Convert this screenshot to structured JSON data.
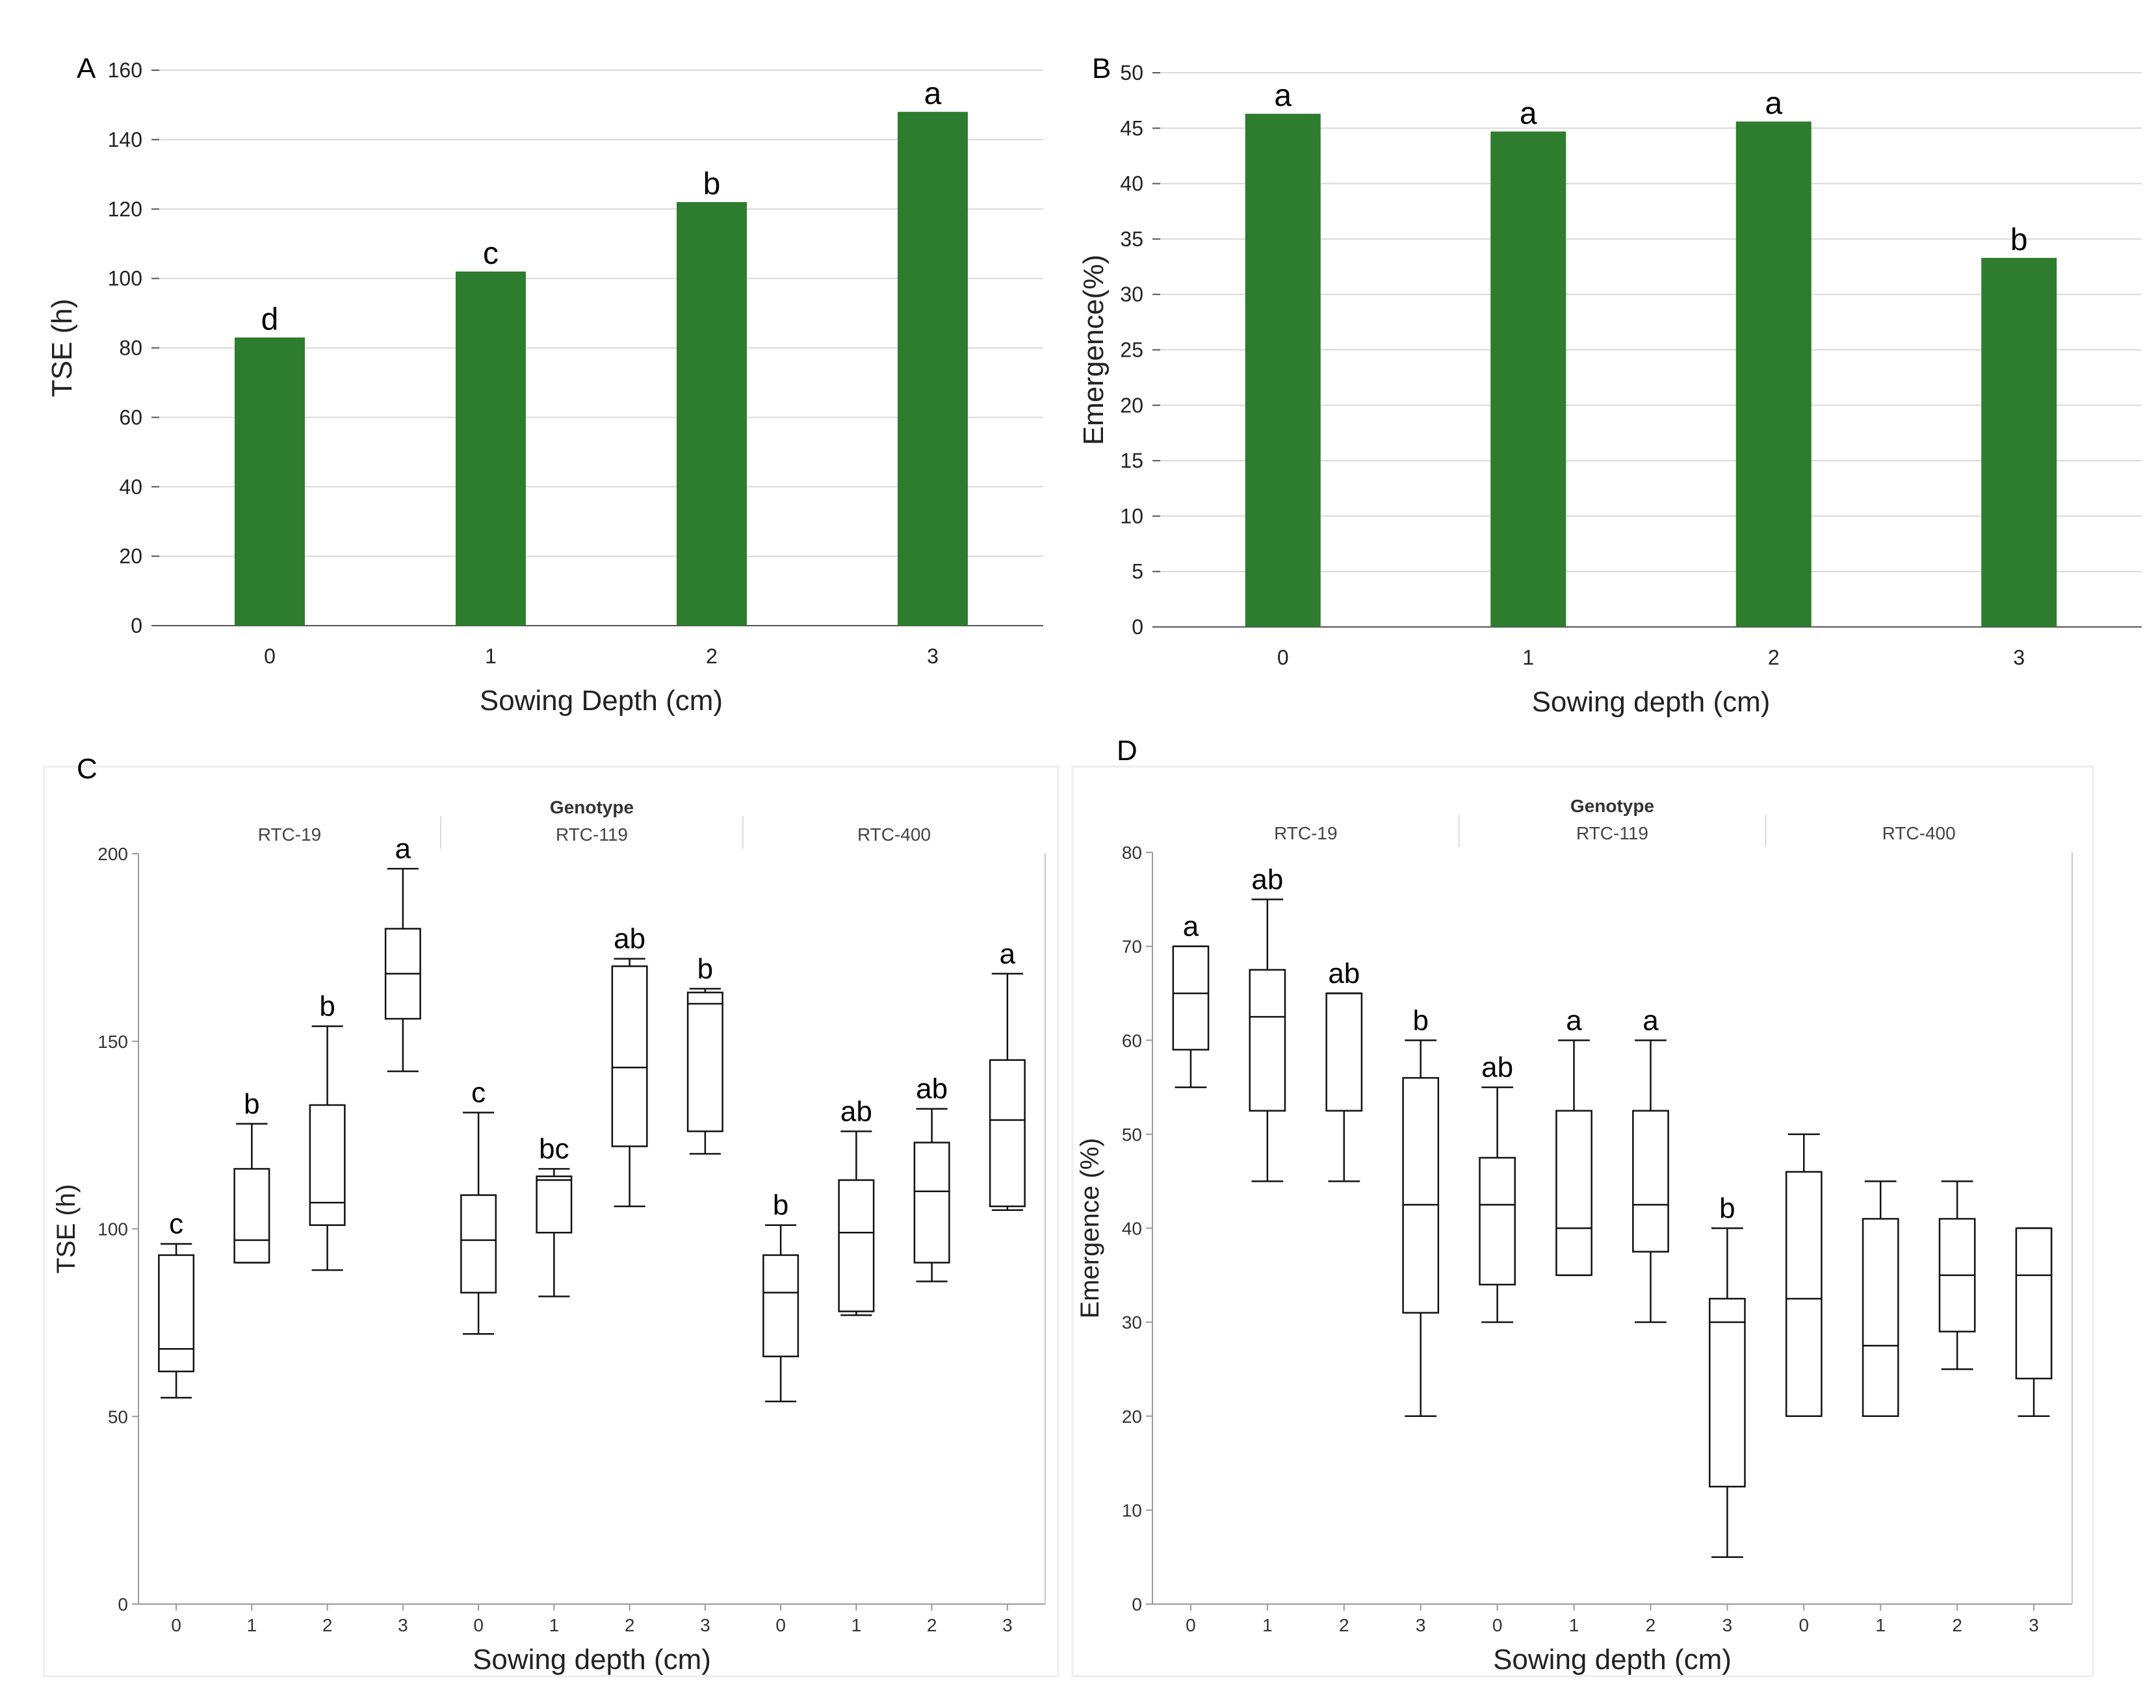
{
  "page": {
    "background": "#ffffff",
    "bar_color": "#2e7d2e",
    "axis_color": "#555555",
    "grid_color": "#d9d9d9"
  },
  "chart_data": [
    {
      "panel": "A",
      "type": "bar",
      "categories": [
        "0",
        "1",
        "2",
        "3"
      ],
      "values": [
        83,
        102,
        122,
        148
      ],
      "letters": [
        "d",
        "c",
        "b",
        "a"
      ],
      "xlabel": "Sowing Depth (cm)",
      "ylabel": "TSE (h)",
      "ylim": [
        0,
        160
      ],
      "yticks": [
        0,
        20,
        40,
        60,
        80,
        100,
        120,
        140,
        160
      ],
      "grid": true
    },
    {
      "panel": "B",
      "type": "bar",
      "categories": [
        "0",
        "1",
        "2",
        "3"
      ],
      "values": [
        46.3,
        44.7,
        45.6,
        33.3
      ],
      "letters": [
        "a",
        "a",
        "a",
        "b"
      ],
      "xlabel": "Sowing depth (cm)",
      "ylabel": "Emergence(%)",
      "ylim": [
        0,
        50
      ],
      "yticks": [
        0,
        5,
        10,
        15,
        20,
        25,
        30,
        35,
        40,
        45,
        50
      ],
      "grid": true
    },
    {
      "panel": "C",
      "type": "box",
      "facet_title": "Genotype",
      "groups": [
        "RTC-19",
        "RTC-119",
        "RTC-400"
      ],
      "categories": [
        "0",
        "1",
        "2",
        "3",
        "0",
        "1",
        "2",
        "3",
        "0",
        "1",
        "2",
        "3"
      ],
      "boxes": [
        {
          "min": 55,
          "q1": 62,
          "median": 68,
          "q3": 93,
          "max": 96,
          "letter": "c"
        },
        {
          "min": 91,
          "q1": 91,
          "median": 97,
          "q3": 116,
          "max": 128,
          "letter": "b"
        },
        {
          "min": 89,
          "q1": 101,
          "median": 107,
          "q3": 133,
          "max": 154,
          "letter": "b"
        },
        {
          "min": 142,
          "q1": 156,
          "median": 168,
          "q3": 180,
          "max": 196,
          "letter": "a"
        },
        {
          "min": 72,
          "q1": 83,
          "median": 97,
          "q3": 109,
          "max": 131,
          "letter": "c"
        },
        {
          "min": 82,
          "q1": 99,
          "median": 113,
          "q3": 114,
          "max": 116,
          "letter": "bc"
        },
        {
          "min": 106,
          "q1": 122,
          "median": 143,
          "q3": 170,
          "max": 172,
          "letter": "ab"
        },
        {
          "min": 120,
          "q1": 126,
          "median": 160,
          "q3": 163,
          "max": 164,
          "letter": "b"
        },
        {
          "min": 54,
          "q1": 66,
          "median": 83,
          "q3": 93,
          "max": 101,
          "letter": "b"
        },
        {
          "min": 77,
          "q1": 78,
          "median": 99,
          "q3": 113,
          "max": 126,
          "letter": "ab"
        },
        {
          "min": 86,
          "q1": 91,
          "median": 110,
          "q3": 123,
          "max": 132,
          "letter": "ab"
        },
        {
          "min": 105,
          "q1": 106,
          "median": 129,
          "q3": 145,
          "max": 168,
          "letter": "a"
        }
      ],
      "xlabel": "Sowing depth (cm)",
      "ylabel": "TSE (h)",
      "ylim": [
        0,
        200
      ],
      "yticks": [
        0,
        50,
        100,
        150,
        200
      ],
      "grid": false
    },
    {
      "panel": "D",
      "type": "box",
      "facet_title": "Genotype",
      "groups": [
        "RTC-19",
        "RTC-119",
        "RTC-400"
      ],
      "categories": [
        "0",
        "1",
        "2",
        "3",
        "0",
        "1",
        "2",
        "3",
        "0",
        "1",
        "2",
        "3"
      ],
      "boxes": [
        {
          "min": 55,
          "q1": 59,
          "median": 65,
          "q3": 70,
          "max": 70,
          "letter": "a"
        },
        {
          "min": 45,
          "q1": 52.5,
          "median": 62.5,
          "q3": 67.5,
          "max": 75,
          "letter": "ab"
        },
        {
          "min": 45,
          "q1": 52.5,
          "median": 65,
          "q3": 65,
          "max": 65,
          "letter": "ab"
        },
        {
          "min": 20,
          "q1": 31,
          "median": 42.5,
          "q3": 56,
          "max": 60,
          "letter": "b"
        },
        {
          "min": 30,
          "q1": 34,
          "median": 42.5,
          "q3": 47.5,
          "max": 55,
          "letter": "ab"
        },
        {
          "min": 35,
          "q1": 35,
          "median": 40,
          "q3": 52.5,
          "max": 60,
          "letter": "a"
        },
        {
          "min": 30,
          "q1": 37.5,
          "median": 42.5,
          "q3": 52.5,
          "max": 60,
          "letter": "a"
        },
        {
          "min": 5,
          "q1": 12.5,
          "median": 30,
          "q3": 32.5,
          "max": 40,
          "letter": "b"
        },
        {
          "min": 20,
          "q1": 20,
          "median": 32.5,
          "q3": 46,
          "max": 50,
          "letter": ""
        },
        {
          "min": 20,
          "q1": 20,
          "median": 27.5,
          "q3": 41,
          "max": 45,
          "letter": ""
        },
        {
          "min": 25,
          "q1": 29,
          "median": 35,
          "q3": 41,
          "max": 45,
          "letter": ""
        },
        {
          "min": 20,
          "q1": 24,
          "median": 35,
          "q3": 40,
          "max": 40,
          "letter": ""
        }
      ],
      "xlabel": "Sowing depth (cm)",
      "ylabel": "Emergence (%)",
      "ylim": [
        0,
        80
      ],
      "yticks": [
        0,
        10,
        20,
        30,
        40,
        50,
        60,
        70,
        80
      ],
      "grid": false
    }
  ]
}
